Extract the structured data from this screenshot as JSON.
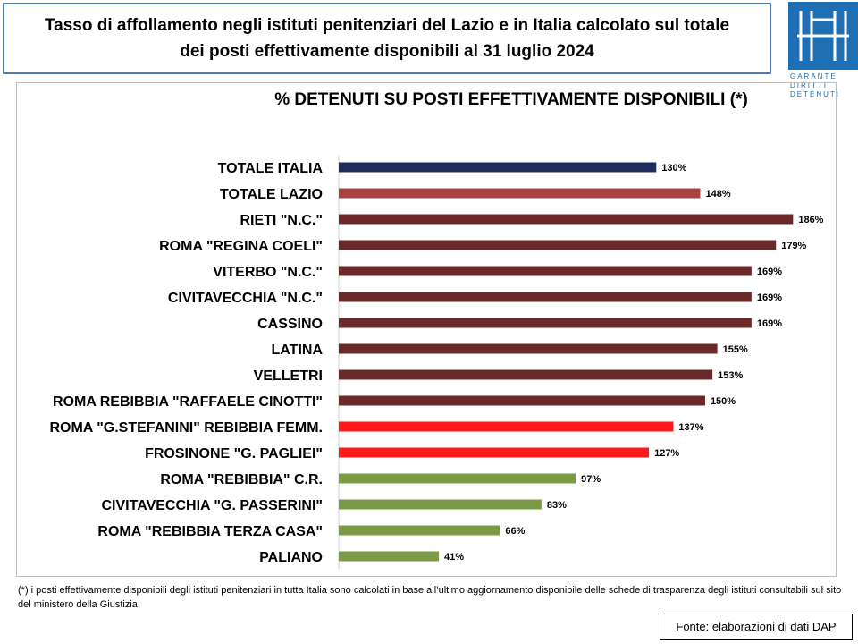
{
  "header": {
    "title_line1": "Tasso di affollamento negli istituti penitenziari del Lazio e in Italia calcolato sul totale",
    "title_line2": "dei posti effettivamente disponibili al 31 luglio 2024"
  },
  "logo": {
    "text": "GARANTE DIRITTI DETENUTI",
    "color": "#1f6fb5"
  },
  "chart_data": {
    "type": "bar",
    "orientation": "horizontal",
    "title": "% DETENUTI SU POSTI EFFETTIVAMENTE DISPONIBILI (*)",
    "xlabel": "",
    "ylabel": "",
    "xlim": [
      0,
      200
    ],
    "grid": false,
    "legend": "none",
    "categories": [
      "TOTALE ITALIA",
      "TOTALE LAZIO",
      "RIETI \"N.C.\"",
      "ROMA \"REGINA COELI\"",
      "VITERBO \"N.C.\"",
      "CIVITAVECCHIA \"N.C.\"",
      "CASSINO",
      "LATINA",
      "VELLETRI",
      "ROMA REBIBBIA \"RAFFAELE CINOTTI\"",
      "ROMA \"G.STEFANINI\" REBIBBIA FEMM.",
      "FROSINONE \"G. PAGLIEI\"",
      "ROMA \"REBIBBIA\" C.R.",
      "CIVITAVECCHIA \"G. PASSERINI\"",
      "ROMA \"REBIBBIA TERZA CASA\"",
      "PALIANO"
    ],
    "values": [
      130,
      148,
      186,
      179,
      169,
      169,
      169,
      155,
      153,
      150,
      137,
      127,
      97,
      83,
      66,
      41
    ],
    "value_labels": [
      "130%",
      "148%",
      "186%",
      "179%",
      "169%",
      "169%",
      "169%",
      "155%",
      "153%",
      "150%",
      "137%",
      "127%",
      "97%",
      "83%",
      "66%",
      "41%"
    ],
    "colors": [
      "#1f2d5c",
      "#a94444",
      "#6b2a2a",
      "#6b2a2a",
      "#6b2a2a",
      "#6b2a2a",
      "#6b2a2a",
      "#6b2a2a",
      "#6b2a2a",
      "#6b2a2a",
      "#ff1a1a",
      "#ff1a1a",
      "#7a9a45",
      "#7a9a45",
      "#7a9a45",
      "#7a9a45"
    ]
  },
  "footnote": "(*) i posti effettivamente disponibili  degli istituti penitenziari in tutta Italia sono calcolati in base all’ultimo aggiornamento disponibile  delle schede di trasparenza degli istituti consultabili sul sito del ministero della Giustizia",
  "source": "Fonte: elaborazioni di dati DAP"
}
